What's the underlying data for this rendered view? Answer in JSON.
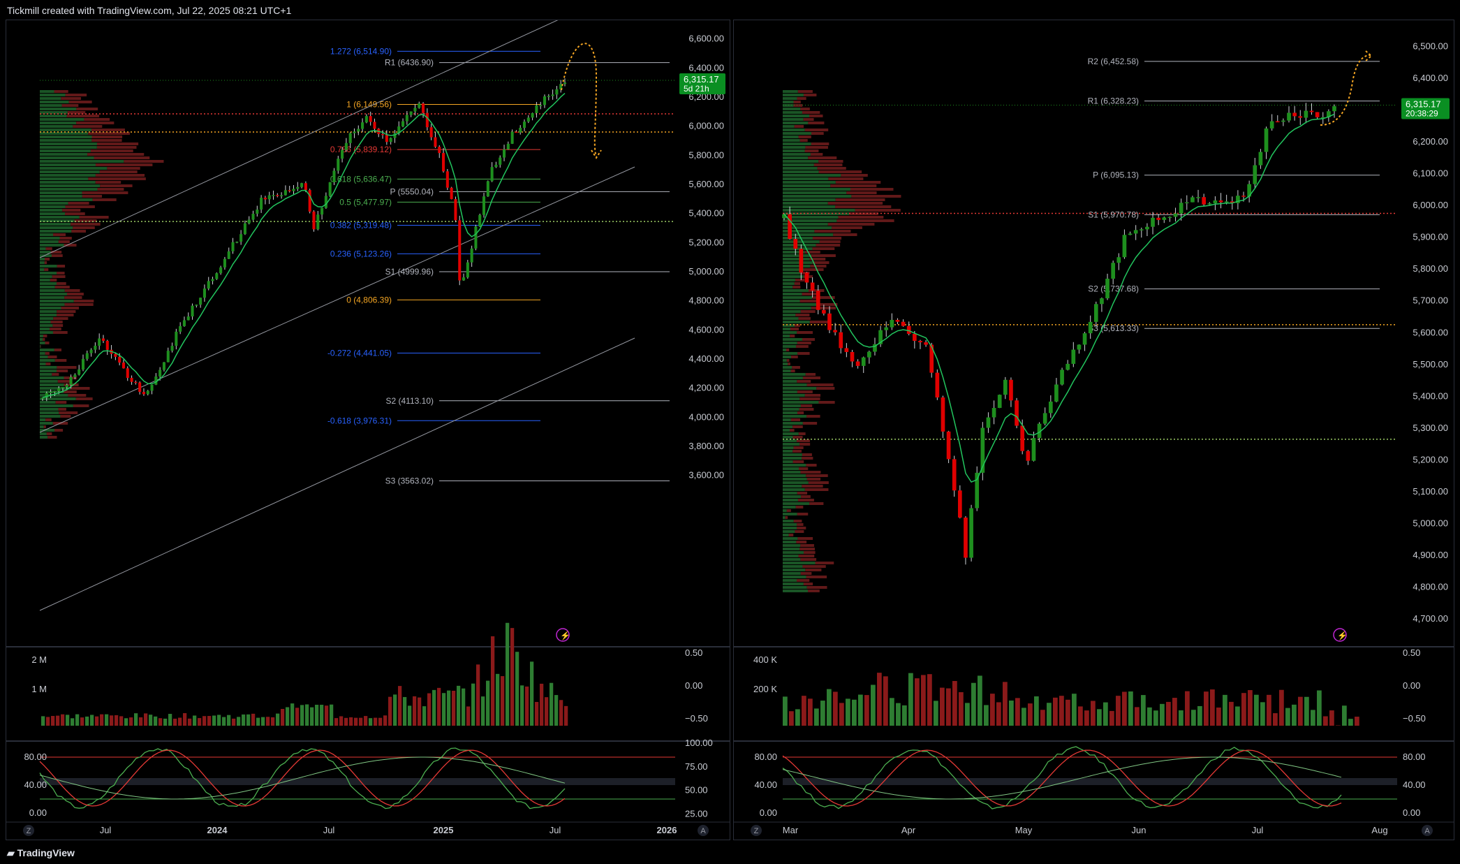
{
  "header": {
    "caption": "Tickmill created with TradingView.com, Jul 22, 2025 08:21 UTC+1"
  },
  "footer": {
    "brand": "TradingView"
  },
  "colors": {
    "up": "#1e8f1e",
    "down": "#e00000",
    "ma": "#22c55e",
    "grid": "#2a2e39",
    "fib_orange": "#f5a623",
    "fib_blue": "#2962ff",
    "fib_green": "#4caf50",
    "pivot": "#b2b5be",
    "badge": "#089981"
  },
  "chart_data": [
    {
      "type": "candlestick",
      "panel": "left",
      "timeframe": "weekly",
      "y_axis_ticks": [
        "6,600.00",
        "6,400.00",
        "6,200.00",
        "6,000.00",
        "5,800.00",
        "5,600.00",
        "5,400.00",
        "5,200.00",
        "5,000.00",
        "4,800.00",
        "4,600.00",
        "4,400.00",
        "4,200.00",
        "4,000.00",
        "3,800.00",
        "3,600.00"
      ],
      "ylim": [
        3560,
        6680
      ],
      "x_axis_ticks": [
        "Jul",
        "2024",
        "Jul",
        "2025",
        "Jul",
        "2026"
      ],
      "last_price": "6,315.17",
      "countdown": "5d 21h",
      "levels": [
        {
          "label": "1.272 (6,514.90)",
          "value": 6514.9,
          "kind": "fib_blue"
        },
        {
          "label": "R1 (6436.90)",
          "value": 6436.9,
          "kind": "pivot"
        },
        {
          "label": "1 (6,149.56)",
          "value": 6149.56,
          "kind": "fib_orange"
        },
        {
          "label": "0.786 (5,839.12)",
          "value": 5839.12,
          "kind": "fib_red"
        },
        {
          "label": "0.618 (5,636.47)",
          "value": 5636.47,
          "kind": "fib_green"
        },
        {
          "label": "P (5550.04)",
          "value": 5550.04,
          "kind": "pivot"
        },
        {
          "label": "0.5 (5,477.97)",
          "value": 5477.97,
          "kind": "fib_green"
        },
        {
          "label": "0.382 (5,319.48)",
          "value": 5319.48,
          "kind": "fib_blue"
        },
        {
          "label": "0.236 (5,123.26)",
          "value": 5123.26,
          "kind": "fib_blue"
        },
        {
          "label": "S1 (4999.96)",
          "value": 4999.96,
          "kind": "pivot"
        },
        {
          "label": "0 (4,806.39)",
          "value": 4806.39,
          "kind": "fib_orange"
        },
        {
          "label": "-0.272 (4,441.05)",
          "value": 4441.05,
          "kind": "fib_blue"
        },
        {
          "label": "S2 (4113.10)",
          "value": 4113.1,
          "kind": "pivot"
        },
        {
          "label": "-0.618 (3,976.31)",
          "value": 3976.31,
          "kind": "fib_blue"
        },
        {
          "label": "S3 (3563.02)",
          "value": 3563.02,
          "kind": "pivot"
        }
      ],
      "dotted_levels": [
        6085,
        5960,
        5345
      ],
      "volume_axis": [
        "2 M",
        "1 M"
      ],
      "osc_axis_right": [
        "0.50",
        "0.00",
        "−0.50"
      ],
      "stoch_axis_left": [
        "80.00",
        "40.00",
        "0.00"
      ],
      "stoch_axis_right": [
        "100.00",
        "75.00",
        "50.00",
        "25.00"
      ],
      "scale_buttons": [
        "Z",
        "A"
      ]
    },
    {
      "type": "candlestick",
      "panel": "right",
      "timeframe": "daily",
      "y_axis_ticks": [
        "6,500.00",
        "6,400.00",
        "6,300.00",
        "6,200.00",
        "6,100.00",
        "6,000.00",
        "5,900.00",
        "5,800.00",
        "5,700.00",
        "5,600.00",
        "5,500.00",
        "5,400.00",
        "5,300.00",
        "5,200.00",
        "5,100.00",
        "5,000.00",
        "4,900.00",
        "4,800.00",
        "4,700.00"
      ],
      "ylim": [
        4650,
        6560
      ],
      "x_axis_ticks": [
        "Mar",
        "Apr",
        "May",
        "Jun",
        "Jul",
        "Aug"
      ],
      "last_price": "6,315.17",
      "countdown": "20:38:29",
      "levels": [
        {
          "label": "R2 (6,452.58)",
          "value": 6452.58,
          "kind": "pivot"
        },
        {
          "label": "R1 (6,328.23)",
          "value": 6328.23,
          "kind": "pivot"
        },
        {
          "label": "P (6,095.13)",
          "value": 6095.13,
          "kind": "pivot"
        },
        {
          "label": "S1 (5,970.78)",
          "value": 5970.78,
          "kind": "pivot"
        },
        {
          "label": "S2 (5,737.68)",
          "value": 5737.68,
          "kind": "pivot"
        },
        {
          "label": "S3 (5,613.33)",
          "value": 5613.33,
          "kind": "pivot"
        }
      ],
      "dotted_levels": [
        5975,
        5625,
        5265
      ],
      "volume_axis": [
        "400 K",
        "200 K"
      ],
      "osc_axis_right": [
        "0.50",
        "0.00",
        "−0.50"
      ],
      "stoch_axis_left": [
        "80.00",
        "40.00",
        "0.00"
      ],
      "stoch_axis_right": [
        "80.00",
        "40.00",
        "0.00"
      ],
      "scale_buttons": [
        "Z",
        "A"
      ]
    }
  ]
}
